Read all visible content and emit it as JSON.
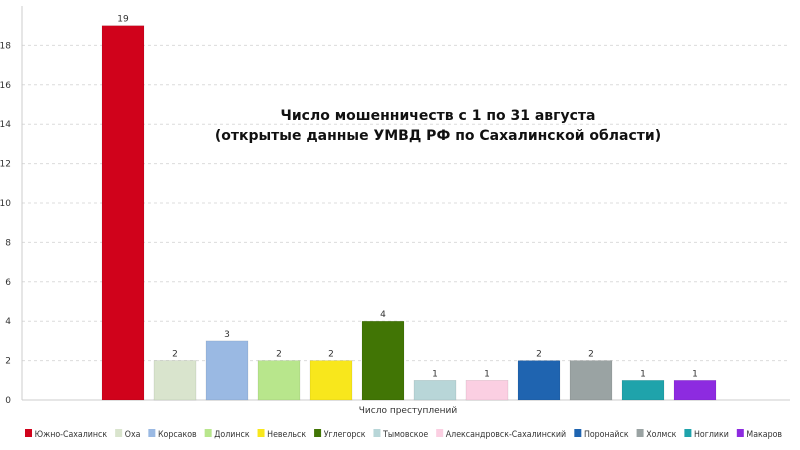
{
  "chart_data": {
    "type": "bar",
    "title_lines": [
      "Число мошенничеств с 1 по 31 августа",
      "(открытые данные УМВД РФ по Сахалинской области)"
    ],
    "xlabel": "Число преступлений",
    "ylabel": "",
    "ylim": [
      0,
      20
    ],
    "yticks": [
      0,
      2,
      4,
      6,
      8,
      10,
      12,
      14,
      16,
      18
    ],
    "grid": true,
    "legend_position": "bottom",
    "series": [
      {
        "name": "Южно-Сахалинск",
        "value": 19,
        "color": "#d0021b"
      },
      {
        "name": "Оха",
        "value": 2,
        "color": "#d9e4cd"
      },
      {
        "name": "Корсаков",
        "value": 3,
        "color": "#9ab9e3"
      },
      {
        "name": "Долинск",
        "value": 2,
        "color": "#b8e68c"
      },
      {
        "name": "Невельск",
        "value": 2,
        "color": "#f8e71c"
      },
      {
        "name": "Углегорск",
        "value": 4,
        "color": "#417505"
      },
      {
        "name": "Тымовское",
        "value": 1,
        "color": "#b8d6d8"
      },
      {
        "name": "Александровск-Сахалинский",
        "value": 1,
        "color": "#fbcfe2"
      },
      {
        "name": "Поронайск",
        "value": 2,
        "color": "#1f64b0"
      },
      {
        "name": "Холмск",
        "value": 2,
        "color": "#9aa3a3"
      },
      {
        "name": "Ноглики",
        "value": 1,
        "color": "#1fa3ab"
      },
      {
        "name": "Макаров",
        "value": 1,
        "color": "#8d2be0"
      }
    ]
  }
}
